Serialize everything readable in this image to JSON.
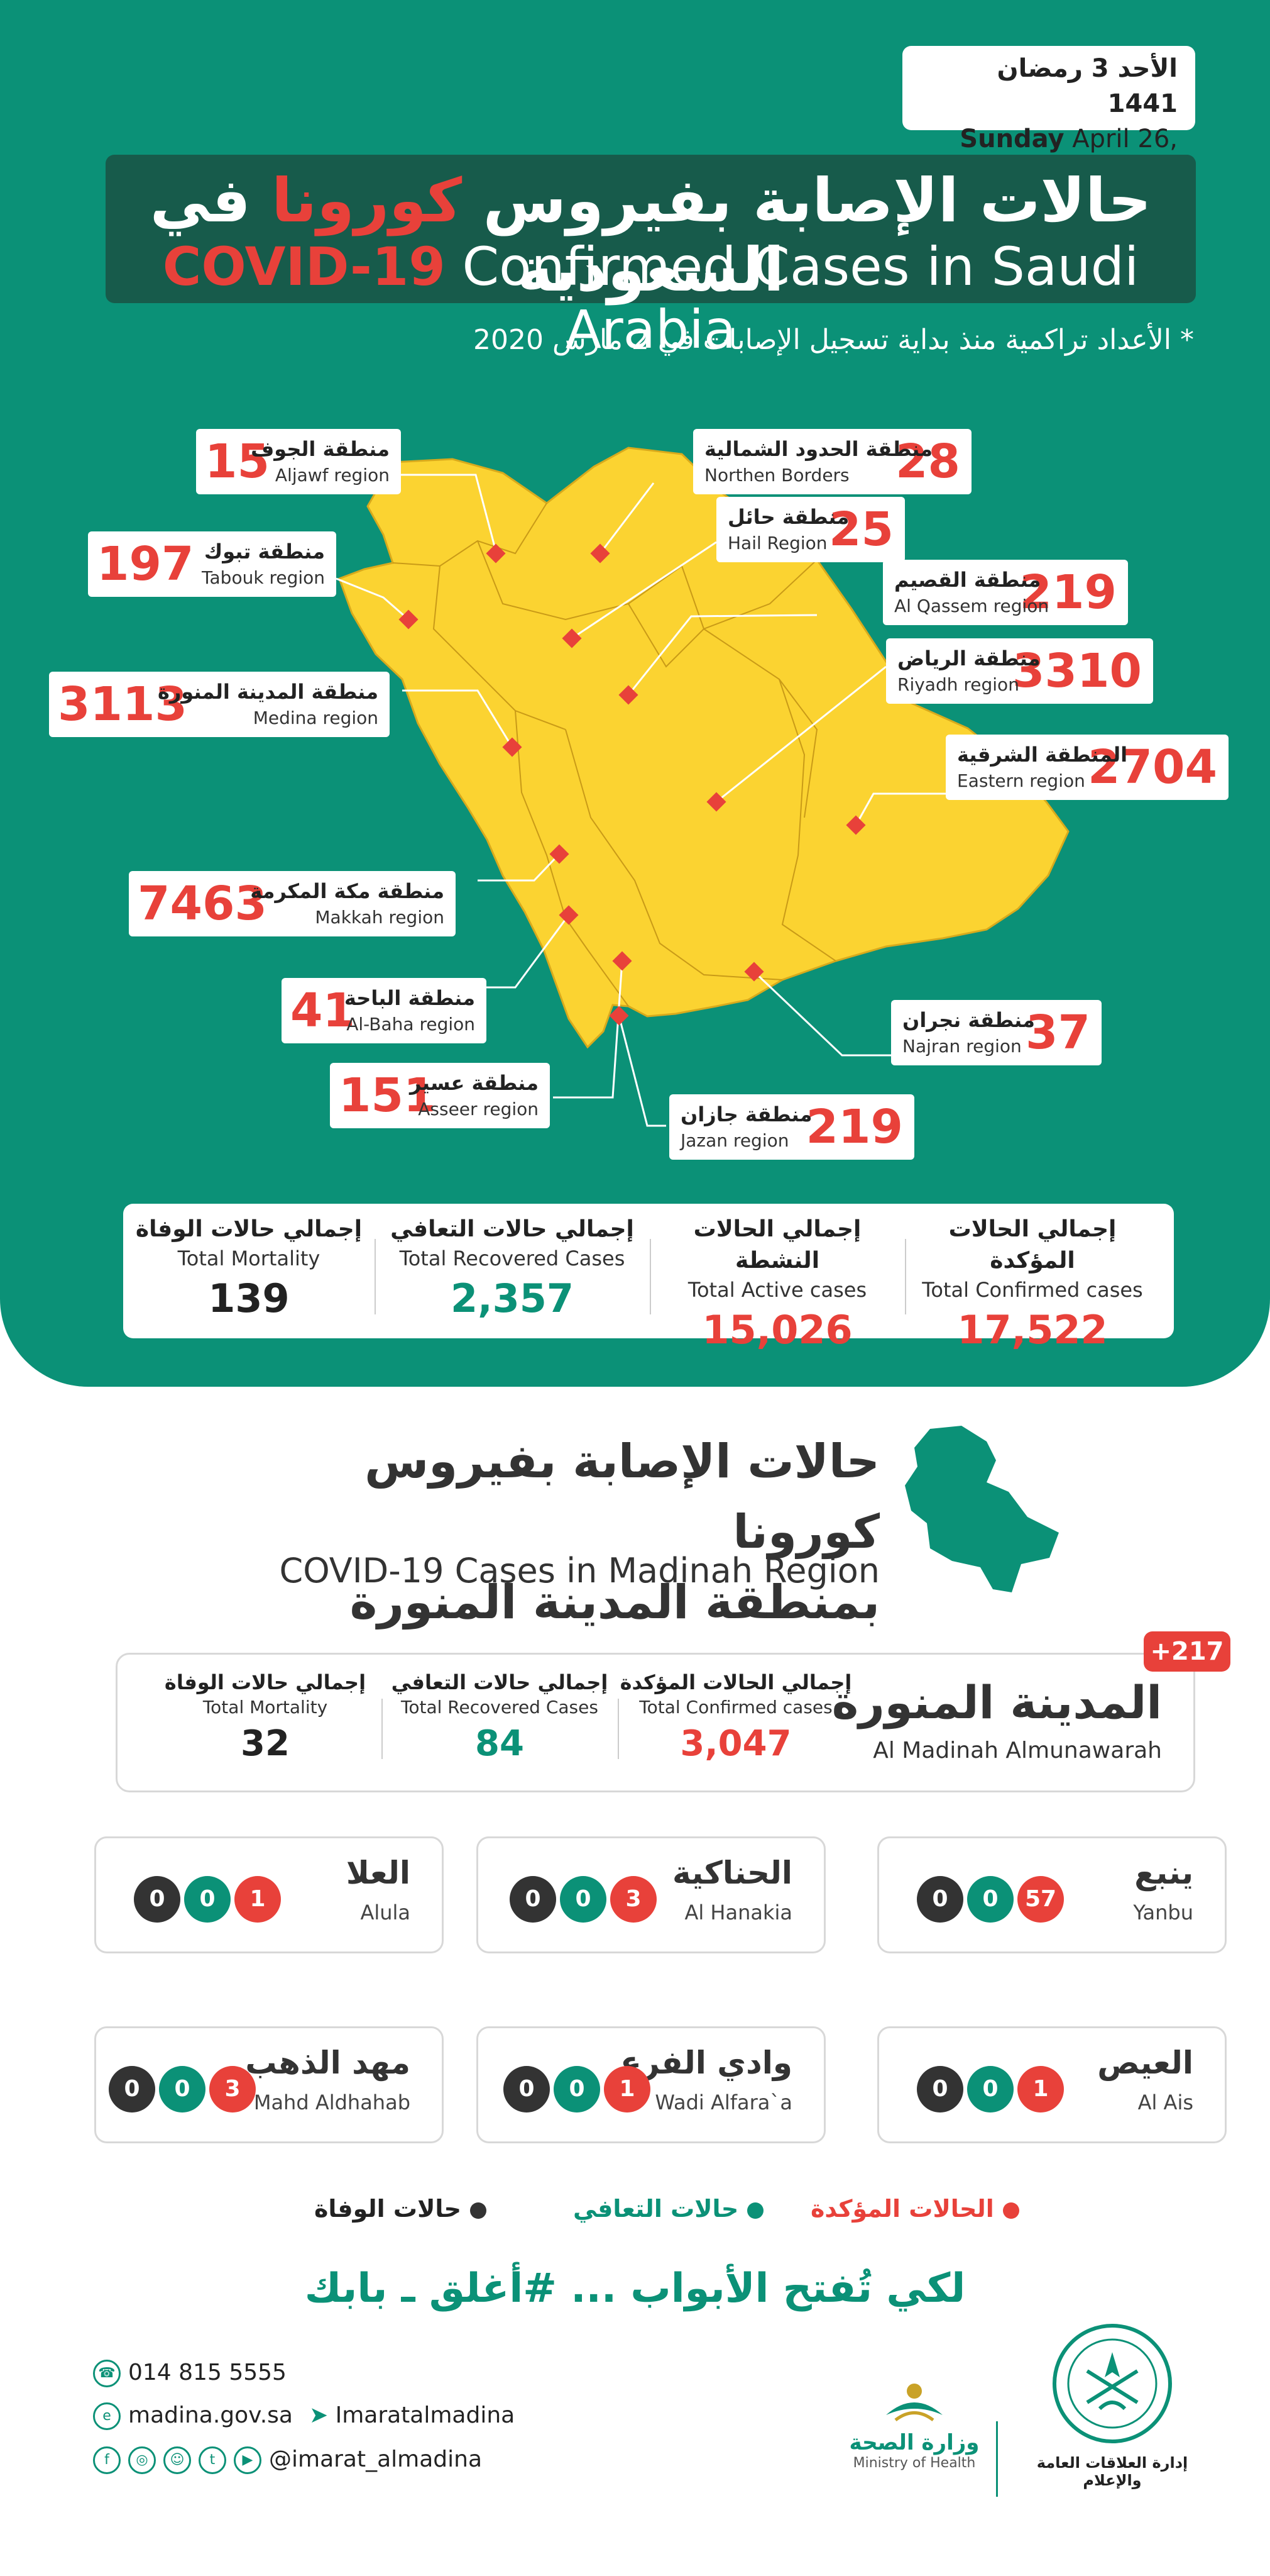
{
  "date": {
    "hijri": "الأحد 3 رمضان 1441",
    "weekday": "Sunday",
    "gregorian": "April 26, 2020"
  },
  "title": {
    "ar_part1": "حالات الإصابة بفيروس ",
    "ar_highlight": "كورونا",
    "ar_part2": " في السعودية",
    "en_highlight": "COVID-19",
    "en_rest": " Confirmed Cases in Saudi Arabia"
  },
  "note": "* الأعداد تراكمية منذ بداية تسجيل الإصابات في 2 مارس 2020",
  "regions": [
    {
      "id": "aljawf",
      "ar": "منطقة الجوف",
      "en": "Aljawf region",
      "value": "15"
    },
    {
      "id": "northern",
      "ar": "منطقة الحدود الشمالية",
      "en": "Northen Borders",
      "value": "28"
    },
    {
      "id": "hail",
      "ar": "منطقة حائل",
      "en": "Hail Region",
      "value": "25"
    },
    {
      "id": "tabouk",
      "ar": "منطقة تبوك",
      "en": "Tabouk region",
      "value": "197"
    },
    {
      "id": "qassem",
      "ar": "منطقة القصيم",
      "en": "Al Qassem region",
      "value": "219"
    },
    {
      "id": "riyadh",
      "ar": "منطقة الرياض",
      "en": "Riyadh region",
      "value": "3310"
    },
    {
      "id": "medina",
      "ar": "منطقة المدينة المنورة",
      "en": "Medina region",
      "value": "3113"
    },
    {
      "id": "eastern",
      "ar": "المنطقة الشرقية",
      "en": "Eastern region",
      "value": "2704"
    },
    {
      "id": "makkah",
      "ar": "منطقة مكة المكرمة",
      "en": "Makkah region",
      "value": "7463"
    },
    {
      "id": "albaha",
      "ar": "منطقة الباحة",
      "en": "Al-Baha region",
      "value": "41"
    },
    {
      "id": "najran",
      "ar": "منطقة نجران",
      "en": "Najran region",
      "value": "37"
    },
    {
      "id": "asseer",
      "ar": "منطقة عسير",
      "en": "Asseer region",
      "value": "151"
    },
    {
      "id": "jazan",
      "ar": "منطقة جازان",
      "en": "Jazan region",
      "value": "219"
    }
  ],
  "totals": [
    {
      "ar": "إجمالي الحالات المؤكدة",
      "en": "Total Confirmed cases",
      "value": "17,522",
      "color": "#e8413a"
    },
    {
      "ar": "إجمالي الحالات النشطة",
      "en": "Total Active cases",
      "value": "15,026",
      "color": "#e8413a"
    },
    {
      "ar": "إجمالي حالات التعافي",
      "en": "Total Recovered Cases",
      "value": "2,357",
      "color": "#0b9177"
    },
    {
      "ar": "إجمالي حالات الوفاة",
      "en": "Total Mortality",
      "value": "139",
      "color": "#222222"
    }
  ],
  "madinah": {
    "title_ar_1": "حالات الإصابة بفيروس كورونا",
    "title_ar_2": "بمنطقة المدينة المنورة",
    "title_en": "COVID-19 Cases in Madinah Region",
    "city_ar": "المدينة المنورة",
    "city_en": "Al Madinah Almunawarah",
    "badge": "+217",
    "stats": [
      {
        "ar": "إجمالي الحالات المؤكدة",
        "en": "Total Confirmed cases",
        "value": "3,047",
        "color": "#e8413a"
      },
      {
        "ar": "إجمالي حالات التعافي",
        "en": "Total Recovered Cases",
        "value": "84",
        "color": "#0b9177"
      },
      {
        "ar": "إجمالي حالات الوفاة",
        "en": "Total Mortality",
        "value": "32",
        "color": "#222222"
      }
    ]
  },
  "governorates": [
    {
      "ar": "ينبع",
      "en": "Yanbu",
      "confirmed": "57",
      "recovered": "0",
      "deaths": "0"
    },
    {
      "ar": "الحناكية",
      "en": "Al Hanakia",
      "confirmed": "3",
      "recovered": "0",
      "deaths": "0"
    },
    {
      "ar": "العلا",
      "en": "Alula",
      "confirmed": "1",
      "recovered": "0",
      "deaths": "0"
    },
    {
      "ar": "العيص",
      "en": "Al Ais",
      "confirmed": "1",
      "recovered": "0",
      "deaths": "0"
    },
    {
      "ar": "وادي الفرع",
      "en": "Wadi Alfara`a",
      "confirmed": "1",
      "recovered": "0",
      "deaths": "0"
    },
    {
      "ar": "مهد الذهب",
      "en": "Mahd Aldhahab",
      "confirmed": "3",
      "recovered": "0",
      "deaths": "0"
    }
  ],
  "legend": {
    "confirmed": "الحالات المؤكدة",
    "recovered": "حالات التعافي",
    "deaths": "حالات الوفاة"
  },
  "slogan": "لكي تُفتح الأبواب ... #أغلق ـ بابك",
  "contact": {
    "phone": "014 815 5555",
    "website": "madina.gov.sa",
    "telegram": "Imaratalmadina",
    "social": "@imarat_almadina"
  },
  "logos": {
    "moh_ar": "وزارة الصحة",
    "moh_en": "Ministry of Health",
    "dept_ar": "إدارة العلاقات العامة والإعلام"
  },
  "colors": {
    "green": "#0b9177",
    "dark_green": "#175b4b",
    "red": "#e8413a",
    "map_yellow": "#fbd331"
  }
}
